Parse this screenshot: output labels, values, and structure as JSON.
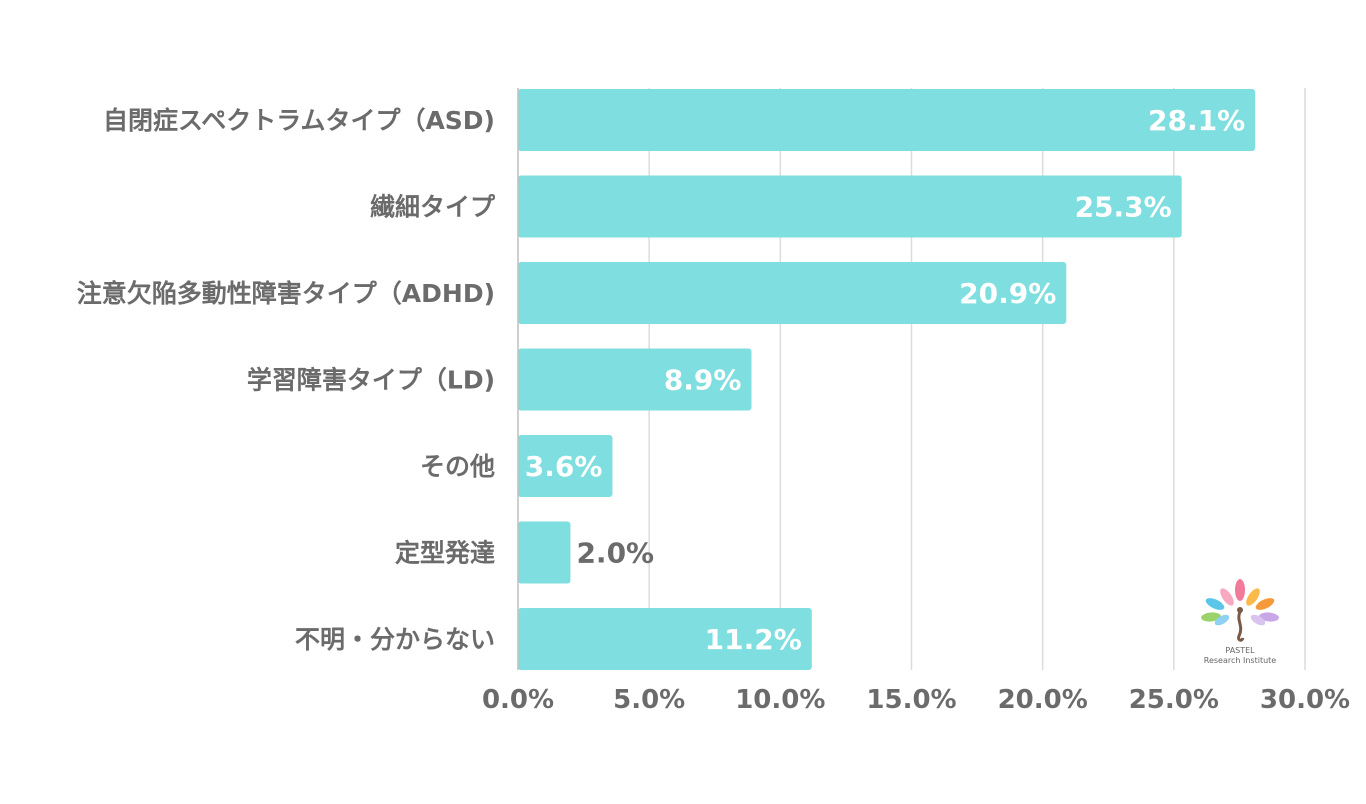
{
  "chart_data": {
    "type": "bar",
    "orientation": "horizontal",
    "categories": [
      "自閉症スペクトラムタイプ（ASD)",
      "繊細タイプ",
      "注意欠陥多動性障害タイプ（ADHD)",
      "学習障害タイプ（LD)",
      "その他",
      "定型発達",
      "不明・分からない"
    ],
    "values": [
      28.1,
      25.3,
      20.9,
      8.9,
      3.6,
      2.0,
      11.2
    ],
    "value_labels": [
      "28.1%",
      "25.3%",
      "20.9%",
      "8.9%",
      "3.6%",
      "2.0%",
      "11.2%"
    ],
    "xlim": [
      0,
      30
    ],
    "x_ticks": [
      0,
      5,
      10,
      15,
      20,
      25,
      30
    ],
    "x_tick_labels": [
      "0.0%",
      "5.0%",
      "10.0%",
      "15.0%",
      "20.0%",
      "25.0%",
      "30.0%"
    ],
    "grid": true,
    "title": "",
    "xlabel": "",
    "ylabel": "",
    "bar_color": "#7FDEDF",
    "grid_color": "#dcdcdc",
    "axis_color": "#bfbfbf"
  },
  "logo": {
    "line1": "PASTEL",
    "line2": "Research Institute",
    "icon": "tree-of-petals-icon"
  }
}
